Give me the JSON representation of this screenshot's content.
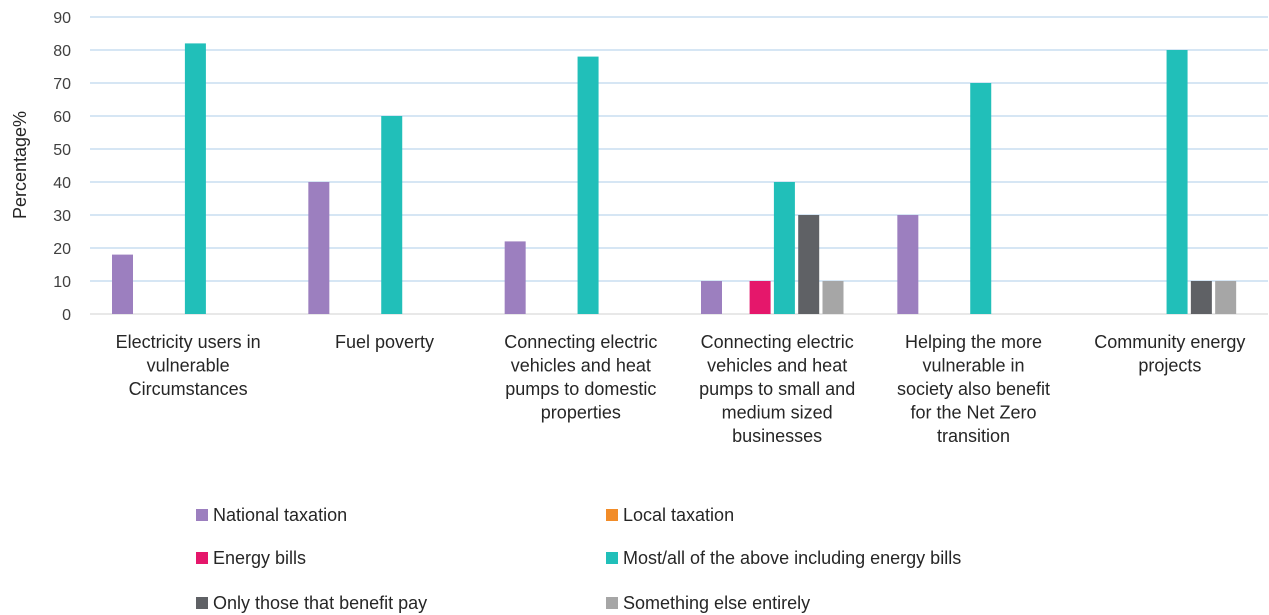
{
  "chart_data": {
    "type": "bar",
    "title": "",
    "xlabel": "",
    "ylabel": "Percentage%",
    "ylim": [
      0,
      90
    ],
    "yticks": [
      0,
      10,
      20,
      30,
      40,
      50,
      60,
      70,
      80,
      90
    ],
    "grid": true,
    "legend_position": "bottom",
    "categories": [
      [
        "Electricity users in",
        "vulnerable",
        "Circumstances"
      ],
      [
        "Fuel poverty"
      ],
      [
        "Connecting electric",
        "vehicles and heat",
        "pumps to domestic",
        "properties"
      ],
      [
        "Connecting electric",
        "vehicles and heat",
        "pumps to small and",
        "medium sized",
        "businesses"
      ],
      [
        "Helping the more",
        "vulnerable in",
        "society also benefit",
        "for the Net Zero",
        "transition"
      ],
      [
        "Community energy",
        "projects"
      ]
    ],
    "series": [
      {
        "name": "National taxation",
        "color": "#9C7FBF",
        "values": [
          18,
          40,
          22,
          10,
          30,
          0
        ]
      },
      {
        "name": "Local taxation",
        "color": "#F28C28",
        "values": [
          0,
          0,
          0,
          0,
          0,
          0
        ]
      },
      {
        "name": "Energy bills",
        "color": "#E5176B",
        "values": [
          0,
          0,
          0,
          10,
          0,
          0
        ]
      },
      {
        "name": "Most/all of the above including energy bills",
        "color": "#21BFB9",
        "values": [
          82,
          60,
          78,
          40,
          70,
          80
        ]
      },
      {
        "name": "Only those that benefit pay",
        "color": "#5F6165",
        "values": [
          0,
          0,
          0,
          30,
          0,
          10
        ]
      },
      {
        "name": "Something else entirely",
        "color": "#A6A6A6",
        "values": [
          0,
          0,
          0,
          10,
          0,
          10
        ]
      }
    ]
  },
  "colors": {
    "gridline": "#BDD7EE",
    "axis_line": "#D9D9D9"
  }
}
